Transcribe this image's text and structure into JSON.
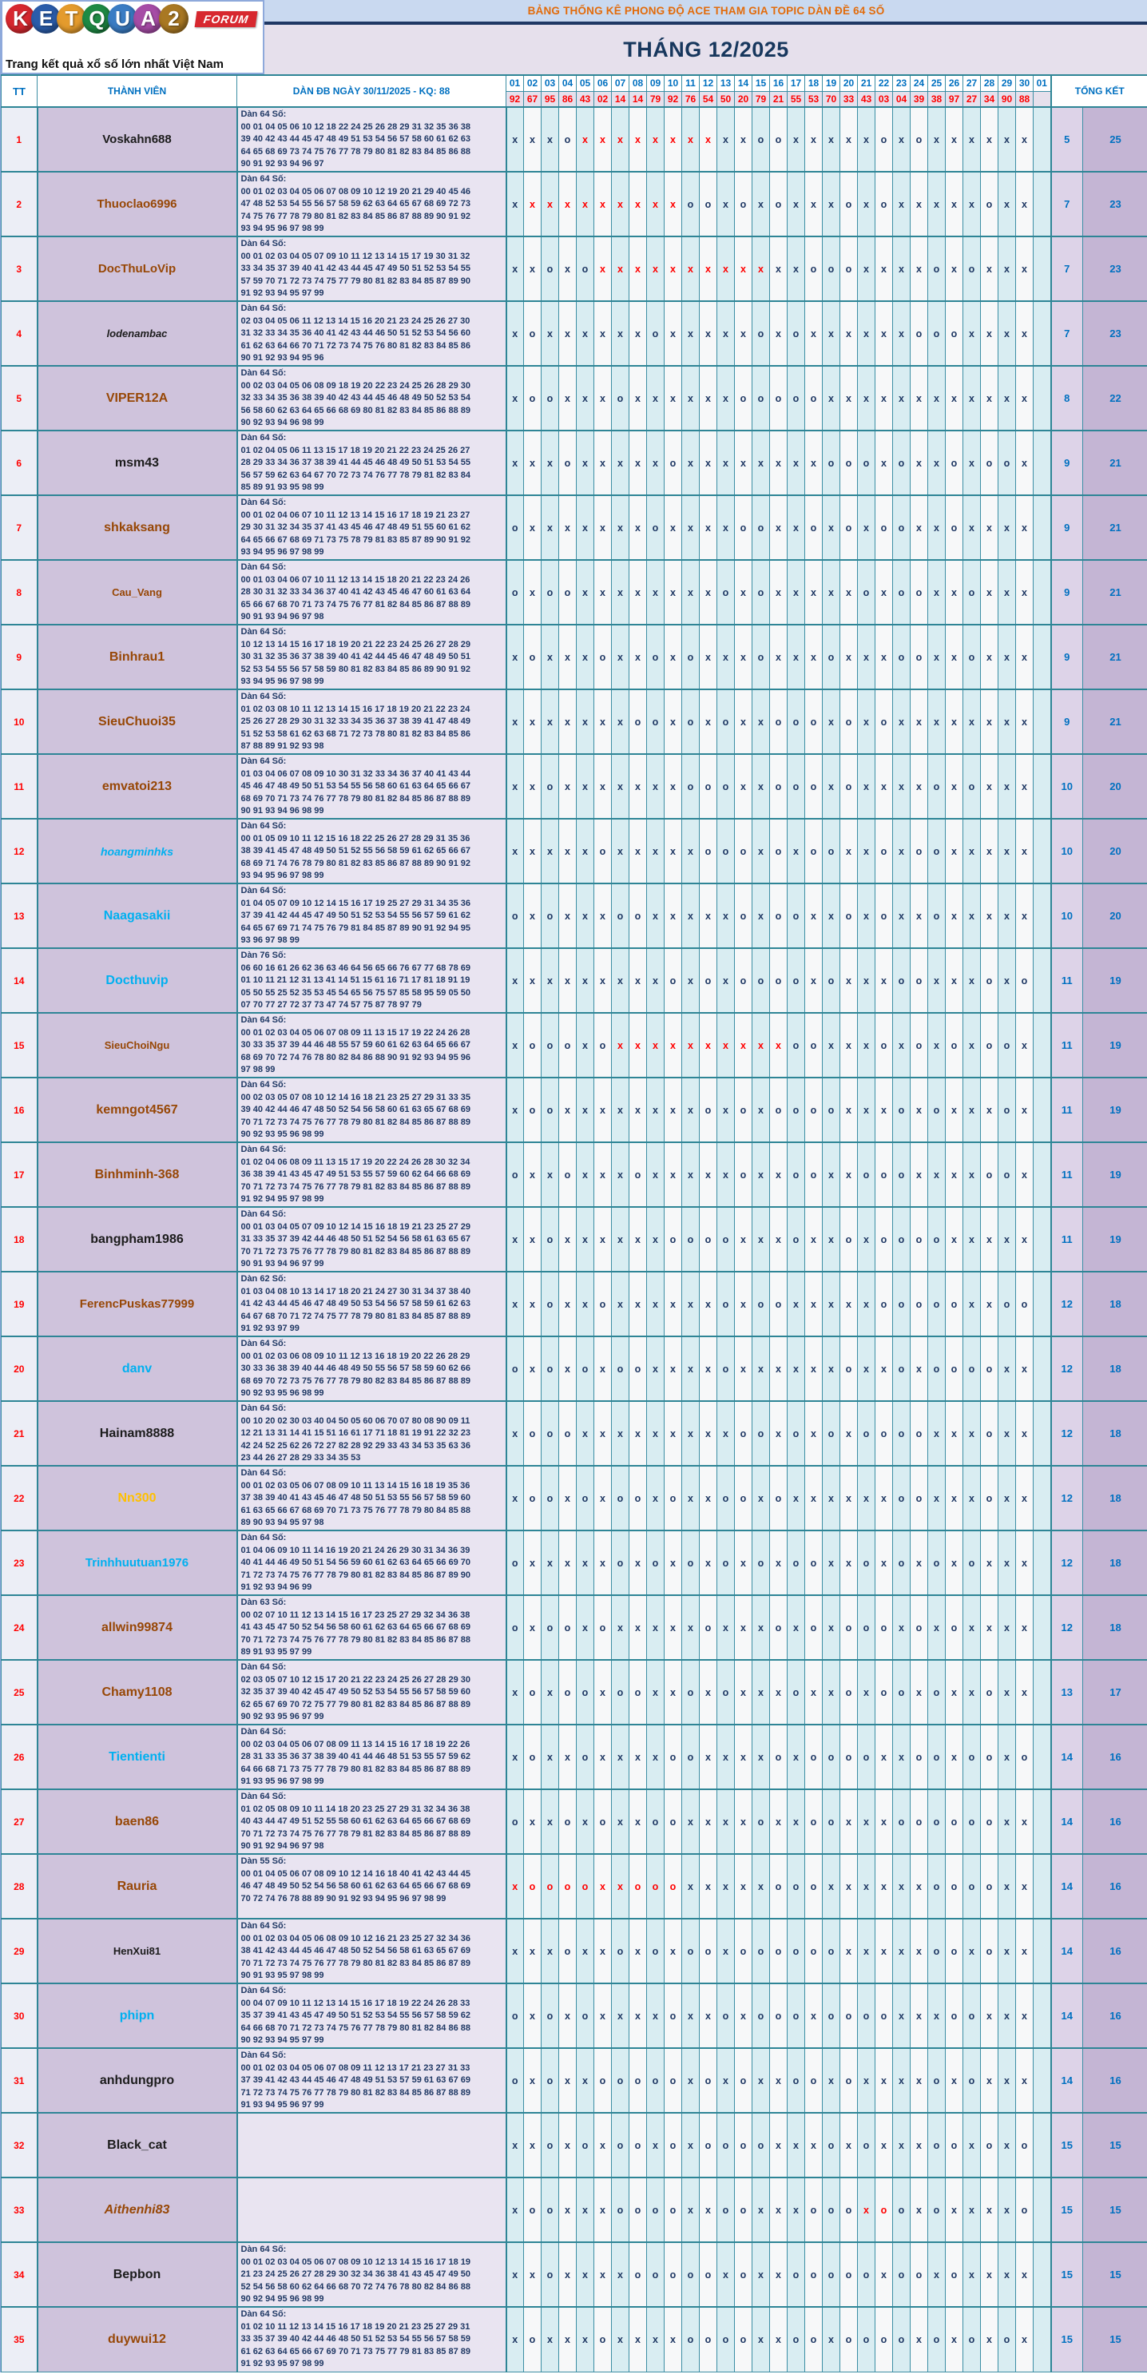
{
  "logo": {
    "brand": "KETQUA2",
    "letters": [
      {
        "ch": "K",
        "color": "#d7282f"
      },
      {
        "ch": "E",
        "color": "#2a5caa"
      },
      {
        "ch": "T",
        "color": "#e49b2d"
      },
      {
        "ch": "Q",
        "color": "#1e8a44"
      },
      {
        "ch": "U",
        "color": "#3a7cc4"
      },
      {
        "ch": "A",
        "color": "#a64ca6"
      },
      {
        "ch": "2",
        "color": "#a97823"
      }
    ],
    "forum_badge": "FORUM",
    "tagline": "Trang kết quả xổ số lớn nhất Việt Nam"
  },
  "titles": {
    "main": "BẢNG THỐNG KÊ PHONG ĐỘ ACE THAM GIA TOPIC DÀN ĐỀ 64 SỐ",
    "month": "THÁNG 12/2025"
  },
  "columns": {
    "tt": "TT",
    "member": "THÀNH VIÊN",
    "dan": "DÀN ĐB NGÀY 30/11/2025 - KQ: 88",
    "total": "TỔNG KẾT"
  },
  "days": [
    "01",
    "02",
    "03",
    "04",
    "05",
    "06",
    "07",
    "08",
    "09",
    "10",
    "11",
    "12",
    "13",
    "14",
    "15",
    "16",
    "17",
    "18",
    "19",
    "20",
    "21",
    "22",
    "23",
    "24",
    "25",
    "26",
    "27",
    "28",
    "29",
    "30",
    "01"
  ],
  "kq": [
    "92",
    "67",
    "95",
    "86",
    "43",
    "02",
    "14",
    "14",
    "79",
    "92",
    "76",
    "54",
    "50",
    "20",
    "79",
    "21",
    "55",
    "53",
    "70",
    "33",
    "43",
    "03",
    "04",
    "39",
    "38",
    "97",
    "27",
    "34",
    "90",
    "88",
    ""
  ],
  "name_colors": {
    "brown": "#974706",
    "black": "#1c1c1c",
    "cyan": "#00b0f0",
    "orange": "#ffc000"
  },
  "rows": [
    {
      "tt": "1",
      "name": "Voskahn688",
      "color": "black",
      "italic": false,
      "size": 15,
      "dan_label": "Dàn 64 Số:",
      "dan_lines": [
        "00 01 04 05 06 10 12 18 22 24 25 26 28 29 31 32 35 36 38",
        "39 40 42 43 44 45 47 48 49 51 53 54 56 57 58 60 61 62 63",
        "64 65 68 69 73 74 75 76 77 78 79 80 81 82 83 84 85 86 88",
        "90 91 92 93 94 96 97"
      ],
      "marks": "xxxoXXXXXXXXxxooxxxxxoxoxxxxxx",
      "totals": [
        "5",
        "25"
      ]
    },
    {
      "tt": "2",
      "name": "Thuoclao6996",
      "color": "brown",
      "italic": false,
      "size": 15,
      "dan_label": "Dàn 64 Số:",
      "dan_lines": [
        "00 01 02 03 04 05 06 07 08 09 10 12 19 20 21 29 40 45 46",
        "47 48 52 53 54 55 56 57 58 59 62 63 64 65 67 68 69 72 73",
        "74 75 76 77 78 79 80 81 82 83 84 85 86 87 88 89 90 91 92",
        "93 94 95 96 97 98 99"
      ],
      "marks": "xXXXXXXXXXooxoxoxxxoxoxxxxxoxx",
      "totals": [
        "7",
        "23"
      ]
    },
    {
      "tt": "3",
      "name": "DocThuLoVip",
      "color": "brown",
      "italic": false,
      "size": 15,
      "dan_label": "Dàn 64 Số:",
      "dan_lines": [
        "00 01 02 03 04 05 07 09 10 11 12 13 14 15 17 19 30 31 32",
        "33 34 35 37 39 40 41 42 43 44 45 47 49 50 51 52 53 54 55",
        "57 59 70 71 72 73 74 75 77 79 80 81 82 83 84 85 87 89 90",
        "91 92 93 94 95 97 99"
      ],
      "marks": "xxoxoXXXXXXXXXXxxoooxxxxoxoxxx",
      "totals": [
        "7",
        "23"
      ]
    },
    {
      "tt": "4",
      "name": "lodenambac",
      "color": "black",
      "italic": true,
      "size": 13,
      "dan_label": "Dàn 64 Số:",
      "dan_lines": [
        "02 03 04 05 06 11 12 13 14 15 16 20 21 23 24 25 26 27 30",
        "31 32 33 34 35 36 40 41 42 43 44 46 50 51 52 53 54 56 60",
        "61 62 63 64 66 70 71 72 73 74 75 76 80 81 82 83 84 85 86",
        "90 91 92 93 94 95 96"
      ],
      "marks": "xoxxxxxxoxxxxxoxoxxxxxxoooxxxx",
      "totals": [
        "7",
        "23"
      ]
    },
    {
      "tt": "5",
      "name": "VIPER12A",
      "color": "brown",
      "italic": false,
      "size": 16,
      "dan_label": "Dàn 64 Số:",
      "dan_lines": [
        "00 02 03 04 05 06 08 09 18 19 20 22 23 24 25 26 28 29 30",
        "32 33 34 35 36 38 39 40 42 43 44 45 46 48 49 50 52 53 54",
        "56 58 60 62 63 64 65 66 68 69 80 81 82 83 84 85 86 88 89",
        "90 92 93 94 96 98 99"
      ],
      "marks": "xooxxxoxxxxxxoooooxxxxxxxxxxxx",
      "totals": [
        "8",
        "22"
      ]
    },
    {
      "tt": "6",
      "name": "msm43",
      "color": "black",
      "italic": false,
      "size": 16,
      "dan_label": "Dàn 64 Số:",
      "dan_lines": [
        "01 02 04 05 06 11 13 15 17 18 19 20 21 22 23 24 25 26 27",
        "28 29 33 34 36 37 38 39 41 44 45 46 48 49 50 51 53 54 55",
        "56 57 59 62 63 64 67 70 72 73 74 76 77 78 79 81 82 83 84",
        "85 89 91 93 95 98 99"
      ],
      "marks": "xxxoxxxxxoxxxxxxxxoooxoxxoxoox",
      "totals": [
        "9",
        "21"
      ]
    },
    {
      "tt": "7",
      "name": "shkaksang",
      "color": "brown",
      "italic": false,
      "size": 16,
      "dan_label": "Dàn 64 Số:",
      "dan_lines": [
        "00 01 02 04 06 07 10 11 12 13 14 15 16 17 18 19 21 23 27",
        "29 30 31 32 34 35 37 41 43 45 46 47 48 49 51 55 60 61 62",
        "64 65 66 67 68 69 71 73 75 78 79 81 83 85 87 89 90 91 92",
        "93 94 95 96 97 98 99"
      ],
      "marks": "oxxxxxxxoxxxxooxxoxoxooxxoxxxx",
      "totals": [
        "9",
        "21"
      ]
    },
    {
      "tt": "8",
      "name": "Cau_Vang",
      "color": "brown",
      "italic": false,
      "size": 13,
      "dan_label": "Dàn 64 Số:",
      "dan_lines": [
        "00 01 03 04 06 07 10 11 12 13 14 15 18 20 21 22 23 24 26",
        "28 30 31 32 33 34 36 37 40 41 42 43 45 46 47 60 61 63 64",
        "65 66 67 68 70 71 73 74 75 76 77 81 82 84 85 86 87 88 89",
        "90 91 93 94 96 97 98"
      ],
      "marks": "oxooxxxxxxxxoxoxxxxxoxooxxoxxx",
      "totals": [
        "9",
        "21"
      ]
    },
    {
      "tt": "9",
      "name": "Binhrau1",
      "color": "brown",
      "italic": false,
      "size": 16,
      "dan_label": "Dàn 64 Số:",
      "dan_lines": [
        "10 12 13 14 15 16 17 18 19 20 21 22 23 24 25 26 27 28 29",
        "30 31 32 35 36 37 38 39 40 41 42 44 45 46 47 48 49 50 51",
        "52 53 54 55 56 57 58 59 80 81 82 83 84 85 86 89 90 91 92",
        "93 94 95 96 97 98 99"
      ],
      "marks": "xoxxxoxxoxoxxxoxxxoxxxooxxoxxx",
      "totals": [
        "9",
        "21"
      ]
    },
    {
      "tt": "10",
      "name": "SieuChuoi35",
      "color": "brown",
      "italic": false,
      "size": 16,
      "dan_label": "Dàn 64 Số:",
      "dan_lines": [
        "01 02 03 08 10 11 12 13 14 15 16 17 18 19 20 21 22 23 24",
        "25 26 27 28 29 30 31 32 33 34 35 36 37 38 39 41 47 48 49",
        "51 52 53 58 61 62 63 68 71 72 73 78 80 81 82 83 84 85 86",
        "87 88 89 91 92 93 98"
      ],
      "marks": "xxxxxxxooxoxoxxoooxoxoxxxxxxxx",
      "totals": [
        "9",
        "21"
      ]
    },
    {
      "tt": "11",
      "name": "emvatoi213",
      "color": "brown",
      "italic": false,
      "size": 16,
      "dan_label": "Dàn 64 Số:",
      "dan_lines": [
        "01 03 04 06 07 08 09 10 30 31 32 33 34 36 37 40 41 43 44",
        "45 46 47 48 49 50 51 53 54 55 56 58 60 61 63 64 65 66 67",
        "68 69 70 71 73 74 76 77 78 79 80 81 82 84 85 86 87 88 89",
        "90 91 93 94 96 98 99"
      ],
      "marks": "xxoxxxxxxxoooxxoooxoxxxxoxoxxx",
      "totals": [
        "10",
        "20"
      ]
    },
    {
      "tt": "12",
      "name": "hoangminhks",
      "color": "cyan",
      "italic": true,
      "size": 14,
      "dan_label": "Dàn 64 Số:",
      "dan_lines": [
        "00 01 05 09 10 11 12 15 16 18 22 25 26 27 28 29 31 35 36",
        "38 39 41 45 47 48 49 50 51 52 55 56 58 59 61 62 65 66 67",
        "68 69 71 74 76 78 79 80 81 82 83 85 86 87 88 89 90 91 92",
        "93 94 95 96 97 98 99"
      ],
      "marks": "xxxxxoxxxxxoooxoxooxxoxooxxxxx",
      "totals": [
        "10",
        "20"
      ]
    },
    {
      "tt": "13",
      "name": "Naagasakii",
      "color": "cyan",
      "italic": false,
      "size": 16,
      "dan_label": "Dàn 64 Số:",
      "dan_lines": [
        "01 04 05 07 09 10 12 14 15 16 17 19 25 27 29 31 34 35 36",
        "37 39 41 42 44 45 47 49 50 51 52 53 54 55 56 57 59 61 62",
        "64 65 67 69 71 74 75 76 79 81 84 85 87 89 90 91 92 94 95",
        "93 96 97 98 99"
      ],
      "marks": "oxoxxxooxxxxxoxooxxoxoxxoxxxxx",
      "totals": [
        "10",
        "20"
      ]
    },
    {
      "tt": "14",
      "name": "Docthuvip",
      "color": "cyan",
      "italic": false,
      "size": 16,
      "dan_label": "Dàn 76 Số:",
      "dan_lines": [
        "06 60 16 61 26 62 36 63 46 64 56 65 66 76 67 77 68 78 69",
        "01 10 11 21 12 31 13 41 14 51 15 61 16 71 17 81 18 91 19",
        "05 50 55 25 52 35 53 45 54 65 56 75 57 85 58 95 59 05 50",
        "07 70 77 27 72 37 73 47 74 57 75 87 78 97 79"
      ],
      "marks": "xxxxxxxxxoxoxooooxoxxxooxxxoxo",
      "totals": [
        "11",
        "19"
      ]
    },
    {
      "tt": "15",
      "name": "SieuChoiNgu",
      "color": "brown",
      "italic": false,
      "size": 13,
      "dan_label": "Dàn 64 Số:",
      "dan_lines": [
        "00 01 02 03 04 05 06 07 08 09 11 13 15 17 19 22 24 26 28",
        "30 33 35 37 39 44 46 48 55 57 59 60 61 62 63 64 65 66 67",
        "68 69 70 72 74 76 78 80 82 84 86 88 90 91 92 93 94 95 96",
        "97 98 99"
      ],
      "marks": "xoooxoXXXXXXXXXXooxxxoxoxoxoox",
      "totals": [
        "11",
        "19"
      ]
    },
    {
      "tt": "16",
      "name": "kemngot4567",
      "color": "brown",
      "italic": false,
      "size": 16,
      "dan_label": "Dàn 64 Số:",
      "dan_lines": [
        "00 02 03 05 07 08 10 12 14 16 18 21 23 25 27 29 31 33 35",
        "39 40 42 44 46 47 48 50 52 54 56 58 60 61 63 65 67 68 69",
        "70 71 72 73 74 75 76 77 78 79 80 81 82 84 85 86 87 88 89",
        "90 92 93 95 96 98 99"
      ],
      "marks": "xooxxxxxxxxoxoxooooxxxoxoxxxox",
      "totals": [
        "11",
        "19"
      ]
    },
    {
      "tt": "17",
      "name": "Binhminh-368",
      "color": "brown",
      "italic": false,
      "size": 16,
      "dan_label": "Dàn 64 Số:",
      "dan_lines": [
        "01 02 04 06 08 09 11 13 15 17 19 20 22 24 26 28 30 32 34",
        "36 38 39 41 43 45 47 49 51 53 55 57 59 60 62 64 66 68 69",
        "70 71 72 73 74 75 76 77 78 79 81 82 83 84 85 86 87 88 89",
        "91 92 94 95 97 98 99"
      ],
      "marks": "oxxoxxxoxxxxxoxxooxxoooxxxxoox",
      "totals": [
        "11",
        "19"
      ]
    },
    {
      "tt": "18",
      "name": "bangpham1986",
      "color": "black",
      "italic": false,
      "size": 16,
      "dan_label": "Dàn 64 Số:",
      "dan_lines": [
        "00 01 03 04 05 07 09 10 12 14 15 16 18 19 21 23 25 27 29",
        "31 33 35 37 39 42 44 46 48 50 51 52 54 56 58 61 63 65 67",
        "70 71 72 73 75 76 77 78 79 80 81 82 83 84 85 86 87 88 89",
        "90 91 93 94 96 97 99"
      ],
      "marks": "xxoxxxxxxooooxxxoxxoxooooxxxxx",
      "totals": [
        "11",
        "19"
      ]
    },
    {
      "tt": "19",
      "name": "FerencPuskas77999",
      "color": "brown",
      "italic": false,
      "size": 15,
      "dan_label": "Dàn 62 Số:",
      "dan_lines": [
        "01 03 04 08 10 13 14 17 18 20 21 24 27 30 31 34 37 38 40",
        "41 42 43 44 45 46 47 48 49 50 53 54 56 57 58 59 61 62 63",
        "64 67 68 70 71 72 74 75 77 78 79 80 81 83 84 85 87 88 89",
        "91 92 93 97 99"
      ],
      "marks": "xxoxxoxxxxxxoxooxxxxxoooooxxoo",
      "totals": [
        "12",
        "18"
      ]
    },
    {
      "tt": "20",
      "name": "danv",
      "color": "cyan",
      "italic": false,
      "size": 16,
      "dan_label": "Dàn 64 Số:",
      "dan_lines": [
        "00 01 02 03 06 08 09 10 11 12 13 16 18 19 20 22 26 28 29",
        "30 33 36 38 39 40 44 46 48 49 50 55 56 57 58 59 60 62 66",
        "68 69 70 72 73 75 76 77 78 79 80 82 83 84 85 86 87 88 89",
        "90 92 93 95 96 98 99"
      ],
      "marks": "oxoxoxooxxxxoxxxxxxoxxoxooooxx",
      "totals": [
        "12",
        "18"
      ]
    },
    {
      "tt": "21",
      "name": "Hainam8888",
      "color": "black",
      "italic": false,
      "size": 16,
      "dan_label": "Dàn 64 Số:",
      "dan_lines": [
        "00 10 20 02 30 03 40 04 50 05 60 06 70 07 80 08 90 09 11",
        "12 21 13 31 14 41 15 51 16 61 17 71 18 81 19 91 22 32 23",
        "42 24 52 25 62 26 72 27 82 28 92 29 33 43 34 53 35 63 36",
        "23 44 26 27 28 29 33 34 35 53"
      ],
      "marks": "xoooxxxxxxxxxooxoxoxooooxxxoxx",
      "totals": [
        "12",
        "18"
      ]
    },
    {
      "tt": "22",
      "name": "Nn300",
      "color": "orange",
      "italic": false,
      "size": 16,
      "dan_label": "Dàn 64 Số:",
      "dan_lines": [
        "00 01 02 03 05 06 07 08 09 10 11 13 14 15 16 18 19 35 36",
        "37 38 39 40 41 43 45 46 47 48 50 51 53 55 56 57 58 59 60",
        "61 63 65 66 67 68 69 70 71 73 75 76 77 78 79 80 84 85 88",
        "89 90 93 94 95 97 98"
      ],
      "marks": "xooxoxooxoxxooxoxxxxxxooxxxoxx",
      "totals": [
        "12",
        "18"
      ]
    },
    {
      "tt": "23",
      "name": "Trinhhuutuan1976",
      "color": "cyan",
      "italic": false,
      "size": 15,
      "dan_label": "Dàn 64 Số:",
      "dan_lines": [
        "01 04 06 09 10 11 14 16 19 20 21 24 26 29 30 31 34 36 39",
        "40 41 44 46 49 50 51 54 56 59 60 61 62 63 64 65 66 69 70",
        "71 72 73 74 75 76 77 78 79 80 81 82 83 84 85 86 87 89 90",
        "91 92 93 94 96 99"
      ],
      "marks": "oxxxxxoxoxoxoxoxooxxoxoxoxoxxx",
      "totals": [
        "12",
        "18"
      ]
    },
    {
      "tt": "24",
      "name": "allwin99874",
      "color": "brown",
      "italic": false,
      "size": 16,
      "dan_label": "Dàn 63 Số:",
      "dan_lines": [
        "00 02 07 10 11 12 13 14 15 16 17 23 25 27 29 32 34 36 38",
        "41 43 45 47 50 52 54 56 58 60 61 62 63 64 65 66 67 68 69",
        "70 71 72 73 74 75 76 77 78 79 80 81 82 83 84 85 86 87 88",
        "89 91 93 95 97 99"
      ],
      "marks": "oxooxoxxxxxoxxxoxoxoooxoxoxxxx",
      "totals": [
        "12",
        "18"
      ]
    },
    {
      "tt": "25",
      "name": "Chamy1108",
      "color": "brown",
      "italic": false,
      "size": 16,
      "dan_label": "Dàn 64 Số:",
      "dan_lines": [
        "02 03 05 07 10 12 15 17 20 21 22 23 24 25 26 27 28 29 30",
        "32 35 37 39 40 42 45 47 49 50 52 53 54 55 56 57 58 59 60",
        "62 65 67 69 70 72 75 77 79 80 81 82 83 84 85 86 87 88 89",
        "90 92 93 95 96 97 99"
      ],
      "marks": "xoxooxooxxoxoxxxoxxoxooxoxxoxx",
      "totals": [
        "13",
        "17"
      ]
    },
    {
      "tt": "26",
      "name": "Tientienti",
      "color": "cyan",
      "italic": false,
      "size": 16,
      "dan_label": "Dàn 64 Số:",
      "dan_lines": [
        "00 02 03 04 05 06 07 08 09 11 13 14 15 16 17 18 19 22 26",
        "28 31 33 35 36 37 38 39 40 41 44 46 48 51 53 55 57 59 62",
        "64 66 68 71 73 75 77 78 79 80 81 82 83 84 85 86 87 88 89",
        "91 93 95 96 97 98 99"
      ],
      "marks": "xoxxoxxxxooxxxxoxooooxxooxooxo",
      "totals": [
        "14",
        "16"
      ]
    },
    {
      "tt": "27",
      "name": "baen86",
      "color": "brown",
      "italic": false,
      "size": 16,
      "dan_label": "Dàn 64 Số:",
      "dan_lines": [
        "01 02 05 08 09 10 11 14 18 20 23 25 27 29 31 32 34 36 38",
        "40 43 44 47 49 51 52 55 58 60 61 62 63 64 65 66 67 68 69",
        "70 71 72 73 74 75 76 77 78 79 81 82 83 84 85 86 87 88 89",
        "90 91 92 94 96 97 98"
      ],
      "marks": "oxxoxoxxooxxxxoxxooxxxooooooxx",
      "totals": [
        "14",
        "16"
      ]
    },
    {
      "tt": "28",
      "name": "Rauria",
      "color": "brown",
      "italic": false,
      "size": 16,
      "dan_label": "Dàn 55 Số:",
      "dan_lines": [
        "00 01 04 05 06 07 08 09 10 12 14 16 18 40 41 42 43 44 45",
        "46 47 48 49 50 52 54 56 58 60 61 62 63 64 65 66 67 68 69",
        "70 72 74 76 78 88 89 90 91 92 93 94 95 96 97 98 99"
      ],
      "marks": "XOOOOXXOOOxxxxxoooxxxxxxooooxx",
      "totals": [
        "14",
        "16"
      ]
    },
    {
      "tt": "29",
      "name": "HenXui81",
      "color": "black",
      "italic": false,
      "size": 13,
      "dan_label": "Dàn 64 Số:",
      "dan_lines": [
        "00 01 02 03 04 05 06 08 09 10 12 16 21 23 25 27 32 34 36",
        "38 41 42 43 44 45 46 47 48 50 52 54 56 58 61 63 65 67 69",
        "70 71 72 73 74 75 76 77 78 79 80 81 82 83 84 85 86 87 89",
        "90 91 93 95 97 98 99"
      ],
      "marks": "xxxoxxoxoxooxooooooxxxxxooxoxx",
      "totals": [
        "14",
        "16"
      ]
    },
    {
      "tt": "30",
      "name": "phipn",
      "color": "cyan",
      "italic": false,
      "size": 16,
      "dan_label": "Dàn 64 Số:",
      "dan_lines": [
        "00 04 07 09 10 11 12 13 14 15 16 17 18 19 22 24 26 28 33",
        "35 37 39 41 43 45 47 49 50 51 52 53 54 55 56 57 58 59 62",
        "64 66 68 70 71 72 73 74 75 76 77 78 79 80 81 82 84 86 88",
        "90 92 93 94 95 97 99"
      ],
      "marks": "oxoxoxxxxoxxoxoooxooooxxxooxxx",
      "totals": [
        "14",
        "16"
      ]
    },
    {
      "tt": "31",
      "name": "anhdungpro",
      "color": "black",
      "italic": false,
      "size": 16,
      "dan_label": "Dàn 64 Số:",
      "dan_lines": [
        "00 01 02 03 04 05 06 07 08 09 11 12 13 17 21 23 27 31 33",
        "37 39 41 42 43 44 45 46 47 48 49 51 53 57 59 61 63 67 69",
        "71 72 73 74 75 76 77 78 79 80 81 82 83 84 85 86 87 88 89",
        "91 93 94 95 96 97 99"
      ],
      "marks": "oxoxxoooooxoxoxxooxoxxxxoxoxxx",
      "totals": [
        "14",
        "16"
      ]
    },
    {
      "tt": "32",
      "name": "Black_cat",
      "color": "black",
      "italic": false,
      "size": 16,
      "dan_label": "",
      "dan_lines": [],
      "marks": "xxoxoxooxoxooooxxxoxoxxxooxoxo",
      "totals": [
        "15",
        "15"
      ]
    },
    {
      "tt": "33",
      "name": "Aithenhi83",
      "color": "brown",
      "italic": true,
      "size": 16,
      "dan_label": "",
      "dan_lines": [],
      "marks": "xooxxxooooxxooxxxoooXOoxoxxxxo",
      "totals": [
        "15",
        "15"
      ]
    },
    {
      "tt": "34",
      "name": "Bepbon",
      "color": "black",
      "italic": false,
      "size": 16,
      "dan_label": "Dàn 64 Số:",
      "dan_lines": [
        "00 01 02 03 04 05 06 07 08 09 10 12 13 14 15 16 17 18 19",
        "21 23 24 25 26 27 28 29 30 32 34 36 38 41 43 45 47 49 50",
        "52 54 56 58 60 62 64 66 68 70 72 74 76 78 80 82 84 86 88",
        "90 92 94 95 96 98 99"
      ],
      "marks": "xxoxxxxoooooxoxxoooooxooxoxxxx",
      "totals": [
        "15",
        "15"
      ]
    },
    {
      "tt": "35",
      "name": "duywui12",
      "color": "brown",
      "italic": false,
      "size": 16,
      "dan_label": "Dàn 64 Số:",
      "dan_lines": [
        "01 02 10 11 12 13 14 15 16 17 18 19 20 21 23 25 27 29 31",
        "33 35 37 39 40 42 44 46 48 50 51 52 53 54 55 56 57 58 59",
        "61 62 63 64 65 66 67 69 70 71 73 75 77 79 81 83 85 87 89",
        "91 92 93 95 97 98 99"
      ],
      "marks": "xoxxxoxxxxooooxxooxooooxoxoxox",
      "totals": [
        "15",
        "15"
      ]
    }
  ]
}
